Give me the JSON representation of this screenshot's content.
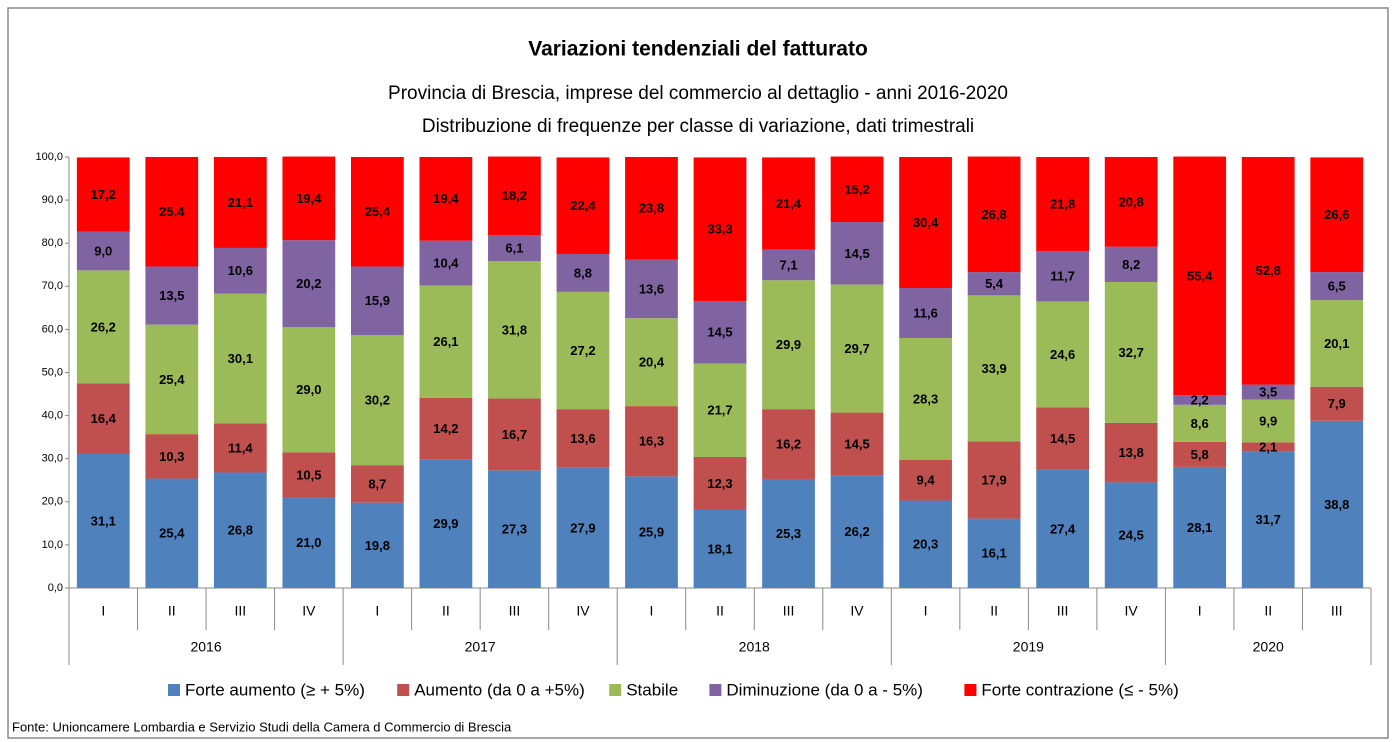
{
  "chart_data": {
    "type": "stacked_bar",
    "title": "Variazioni tendenziali del fatturato",
    "subtitle": "Provincia di Brescia, imprese del commercio al dettaglio - anni 2016-2020",
    "subtitle2": "Distribuzione di frequenze per classe di variazione, dati trimestrali",
    "groups": [
      {
        "label": "2016",
        "categories": [
          "I",
          "II",
          "III",
          "IV"
        ]
      },
      {
        "label": "2017",
        "categories": [
          "I",
          "II",
          "III",
          "IV"
        ]
      },
      {
        "label": "2018",
        "categories": [
          "I",
          "II",
          "III",
          "IV"
        ]
      },
      {
        "label": "2019",
        "categories": [
          "I",
          "II",
          "III",
          "IV"
        ]
      },
      {
        "label": "2020",
        "categories": [
          "I",
          "II",
          "III"
        ]
      }
    ],
    "series": [
      {
        "name": "Forte aumento (≥ + 5%)",
        "color": "#4f81bd",
        "values": [
          31.1,
          25.4,
          26.8,
          21.0,
          19.8,
          29.9,
          27.3,
          27.9,
          25.9,
          18.1,
          25.3,
          26.2,
          20.3,
          16.1,
          27.4,
          24.5,
          28.1,
          31.7,
          38.8
        ],
        "value_labels": [
          "31,1",
          "25,4",
          "26,8",
          "21,0",
          "19,8",
          "29,9",
          "27,3",
          "27,9",
          "25,9",
          "18,1",
          "25,3",
          "26,2",
          "20,3",
          "16,1",
          "27,4",
          "24,5",
          "28,1",
          "31,7",
          "38,8"
        ]
      },
      {
        "name": "Aumento (da 0 a +5%)",
        "color": "#c0504d",
        "values": [
          16.4,
          10.3,
          11.4,
          10.5,
          8.7,
          14.2,
          16.7,
          13.6,
          16.3,
          12.3,
          16.2,
          14.5,
          9.4,
          17.9,
          14.5,
          13.8,
          5.8,
          2.1,
          7.9
        ],
        "value_labels": [
          "16,4",
          "10,3",
          "11,4",
          "10,5",
          "8,7",
          "14,2",
          "16,7",
          "13,6",
          "16,3",
          "12,3",
          "16,2",
          "14,5",
          "9,4",
          "17,9",
          "14,5",
          "13,8",
          "5,8",
          "2,1",
          "7,9"
        ]
      },
      {
        "name": "Stabile",
        "color": "#9bbb59",
        "values": [
          26.2,
          25.4,
          30.1,
          29.0,
          30.2,
          26.1,
          31.8,
          27.2,
          20.4,
          21.7,
          29.9,
          29.7,
          28.3,
          33.9,
          24.6,
          32.7,
          8.6,
          9.9,
          20.1
        ],
        "value_labels": [
          "26,2",
          "25,4",
          "30,1",
          "29,0",
          "30,2",
          "26,1",
          "31,8",
          "27,2",
          "20,4",
          "21,7",
          "29,9",
          "29,7",
          "28,3",
          "33,9",
          "24,6",
          "32,7",
          "8,6",
          "9,9",
          "20,1"
        ]
      },
      {
        "name": "Diminuzione (da 0 a - 5%)",
        "color": "#8064a2",
        "values": [
          9.0,
          13.5,
          10.6,
          20.2,
          15.9,
          10.4,
          6.1,
          8.8,
          13.6,
          14.5,
          7.1,
          14.5,
          11.6,
          5.4,
          11.7,
          8.2,
          2.2,
          3.5,
          6.5
        ],
        "value_labels": [
          "9,0",
          "13,5",
          "10,6",
          "20,2",
          "15,9",
          "10,4",
          "6,1",
          "8,8",
          "13,6",
          "14,5",
          "7,1",
          "14,5",
          "11,6",
          "5,4",
          "11,7",
          "8,2",
          "2,2",
          "3,5",
          "6,5"
        ]
      },
      {
        "name": "Forte contrazione (≤ - 5%)",
        "color": "#ff0000",
        "values": [
          17.2,
          25.4,
          21.1,
          19.4,
          25.4,
          19.4,
          18.2,
          22.4,
          23.8,
          33.3,
          21.4,
          15.2,
          30.4,
          26.8,
          21.8,
          20.8,
          55.4,
          52.8,
          26.6
        ],
        "value_labels": [
          "17,2",
          "25,4",
          "21,1",
          "19,4",
          "25,4",
          "19,4",
          "18,2",
          "22,4",
          "23,8",
          "33,3",
          "21,4",
          "15,2",
          "30,4",
          "26,8",
          "21,8",
          "20,8",
          "55,4",
          "52,8",
          "26,6"
        ]
      }
    ],
    "ylim": [
      0,
      100
    ],
    "yticks": [
      {
        "value": 0,
        "label": "0,0"
      },
      {
        "value": 10,
        "label": "10,0"
      },
      {
        "value": 20,
        "label": "20,0"
      },
      {
        "value": 30,
        "label": "30,0"
      },
      {
        "value": 40,
        "label": "40,0"
      },
      {
        "value": 50,
        "label": "50,0"
      },
      {
        "value": 60,
        "label": "60,0"
      },
      {
        "value": 70,
        "label": "70,0"
      },
      {
        "value": 80,
        "label": "80,0"
      },
      {
        "value": 90,
        "label": "90,0"
      },
      {
        "value": 100,
        "label": "100,0"
      }
    ],
    "legend": "bottom",
    "source": "Fonte: Unioncamere Lombardia e Servizio Studi della Camera d Commercio di Brescia"
  }
}
